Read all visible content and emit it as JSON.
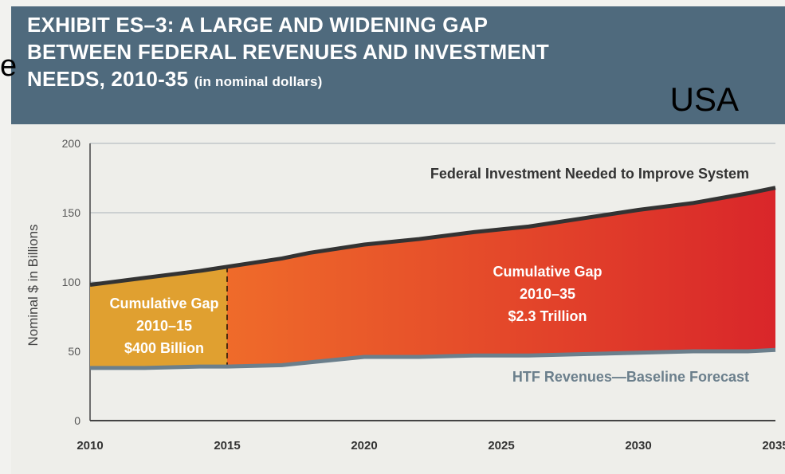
{
  "header": {
    "line1": "EXHIBIT ES–3: A LARGE AND WIDENING GAP",
    "line2": "BETWEEN FEDERAL REVENUES AND INVESTMENT",
    "line3": "NEEDS, 2010-35",
    "line3_sub": "(in nominal dollars)",
    "region_label": "USA",
    "stray_glyph": "e"
  },
  "colors": {
    "banner": "#4f6a7d",
    "gap_2010_15": "#e0a030",
    "gap_red_light": "#ef6b2a",
    "gap_red_dark": "#d9262a",
    "revenue_line": "#6b7f8c",
    "investment_line": "#333333"
  },
  "chart_data": {
    "type": "area",
    "title": "EXHIBIT ES–3: A LARGE AND WIDENING GAP BETWEEN FEDERAL REVENUES AND INVESTMENT NEEDS, 2010-35 (in nominal dollars)",
    "ylabel": "Nominal $ in Billions",
    "xlabel": "",
    "ylim": [
      0,
      200
    ],
    "xlim": [
      2010,
      2035
    ],
    "y_ticks": [
      0,
      50,
      100,
      150,
      200
    ],
    "x_ticks": [
      2010,
      2015,
      2020,
      2025,
      2030,
      2035
    ],
    "grid": true,
    "series": [
      {
        "name": "Federal Investment Needed to Improve System",
        "x": [
          2010,
          2012,
          2014,
          2015,
          2017,
          2018,
          2020,
          2022,
          2024,
          2026,
          2028,
          2030,
          2032,
          2034,
          2035
        ],
        "values": [
          98,
          103,
          108,
          111,
          117,
          121,
          127,
          131,
          136,
          140,
          146,
          152,
          157,
          164,
          168
        ]
      },
      {
        "name": "HTF Revenues—Baseline Forecast",
        "x": [
          2010,
          2012,
          2014,
          2015,
          2017,
          2018,
          2020,
          2022,
          2024,
          2026,
          2028,
          2030,
          2032,
          2034,
          2035
        ],
        "values": [
          38,
          38,
          39,
          39,
          40,
          42,
          46,
          46,
          47,
          47,
          48,
          49,
          50,
          50,
          51
        ]
      }
    ],
    "annotations": [
      {
        "line1": "Cumulative Gap",
        "line2": "2010–15",
        "line3": "$400 Billion"
      },
      {
        "line1": "Cumulative Gap",
        "line2": "2010–35",
        "line3": "$2.3 Trillion"
      }
    ],
    "divider_x": 2015
  }
}
